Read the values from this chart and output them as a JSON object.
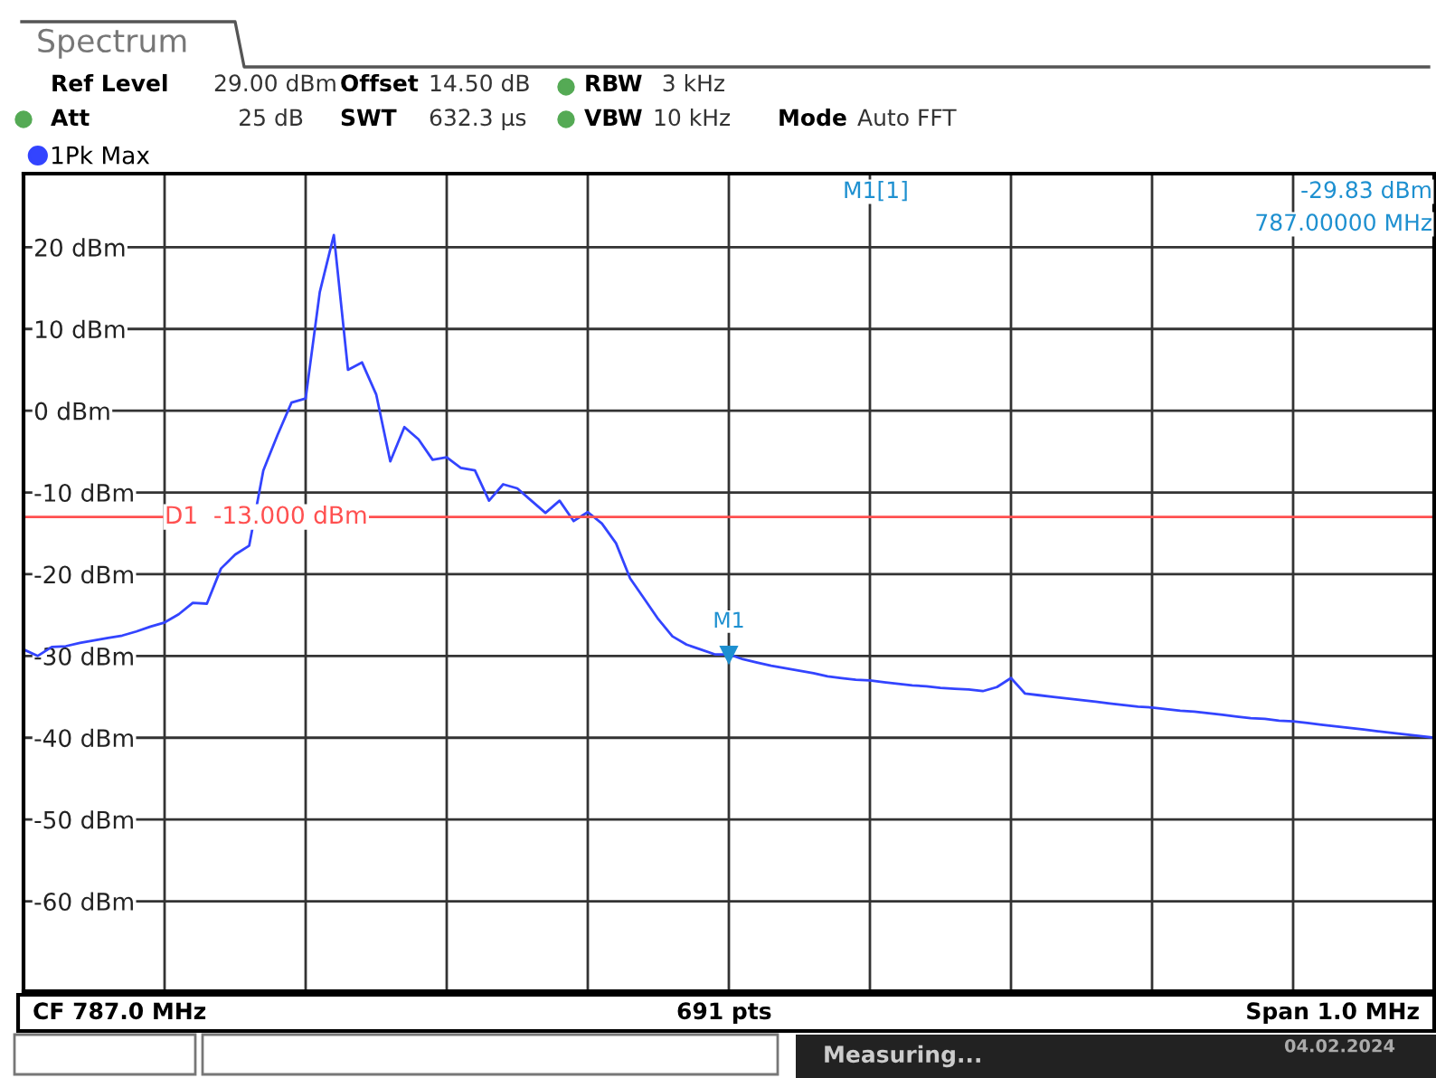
{
  "chart_data": {
    "type": "line",
    "title": "Spectrum",
    "categories": [
      null,
      null,
      null,
      null,
      null,
      null,
      null,
      null,
      null,
      null,
      null,
      null,
      null,
      null,
      null,
      null,
      null,
      null,
      null,
      null,
      null,
      null,
      null,
      null,
      null,
      null,
      null,
      null,
      null,
      null,
      null,
      null,
      null,
      null,
      null,
      null,
      null,
      null,
      null,
      null,
      null,
      null,
      null,
      null,
      null,
      null,
      null,
      null,
      null,
      null,
      null,
      null,
      null,
      null,
      null,
      null,
      null,
      null,
      null,
      null,
      null,
      null,
      null,
      null,
      null,
      null,
      null,
      null,
      null,
      null,
      null,
      null,
      null,
      null,
      null,
      null,
      null,
      null,
      null,
      null,
      null,
      null,
      null,
      null,
      null,
      null,
      null,
      null,
      null,
      null,
      null,
      null,
      null,
      null,
      null,
      null,
      null,
      null,
      null,
      null,
      null
    ],
    "ylim": [
      -71,
      29
    ],
    "yticks": [
      {
        "value": 20,
        "label": "20 dBm"
      },
      {
        "value": 10,
        "label": "10 dBm"
      },
      {
        "value": 0,
        "label": "0 dBm"
      },
      {
        "value": -10,
        "label": "-10 dBm"
      },
      {
        "value": -20,
        "label": "-20 dBm"
      },
      {
        "value": -30,
        "label": "-30 dBm"
      },
      {
        "value": -40,
        "label": "-40 dBm"
      },
      {
        "value": -50,
        "label": "-50 dBm"
      },
      {
        "value": -60,
        "label": "-60 dBm"
      }
    ],
    "tick_labels": "y",
    "grid": true,
    "legend": "top left",
    "marker": "none",
    "line_style": "solid",
    "series": [
      {
        "name": "1Pk Max",
        "color": "#3344ff",
        "values": [
          -29.2,
          -30.0,
          -28.9,
          -28.8,
          -28.4,
          -28.1,
          -27.8,
          -27.5,
          -27.0,
          -26.4,
          -25.9,
          -24.9,
          -23.5,
          -23.6,
          -19.3,
          -17.6,
          -16.5,
          -7.3,
          -3.0,
          1.0,
          1.5,
          14.5,
          21.5,
          5.0,
          5.9,
          2.0,
          -6.2,
          -2.0,
          -3.5,
          -6.0,
          -5.7,
          -7.0,
          -7.3,
          -11.0,
          -9.0,
          -9.5,
          -11.0,
          -12.5,
          -11.0,
          -13.5,
          -12.4,
          -13.8,
          -16.2,
          -20.5,
          -23.0,
          -25.5,
          -27.6,
          -28.6,
          -29.2,
          -29.8,
          -29.8,
          -30.4,
          -30.8,
          -31.2,
          -31.5,
          -31.8,
          -32.1,
          -32.5,
          -32.7,
          -32.9,
          -33.0,
          -33.2,
          -33.4,
          -33.6,
          -33.7,
          -33.9,
          -34.0,
          -34.1,
          -34.3,
          -33.8,
          -32.7,
          -34.6,
          -34.8,
          -35.0,
          -35.2,
          -35.4,
          -35.6,
          -35.8,
          -36.0,
          -36.2,
          -36.3,
          -36.5,
          -36.7,
          -36.8,
          -37.0,
          -37.2,
          -37.4,
          -37.6,
          -37.7,
          -37.9,
          -38.0,
          -38.2,
          -38.4,
          -38.6,
          -38.8,
          -39.0,
          -39.2,
          -39.4,
          -39.6,
          -39.8,
          -40.0
        ]
      }
    ],
    "ref_lines": [
      {
        "axis": "y",
        "value": -13,
        "label": "D1  -13.000 dBm",
        "color": "#ff5050",
        "line_style": "solid"
      }
    ],
    "annotations": [
      "Ref Level",
      "29.00 dBm",
      "Offset",
      "14.50 dB",
      "RBW",
      "3 kHz",
      "Att",
      "25 dB",
      "SWT",
      "632.3 µs",
      "VBW",
      "10 kHz",
      "Mode",
      "Auto FFT",
      "M1[1]",
      "-29.83 dBm",
      "787.00000 MHz",
      {
        "text": "M1",
        "y": -29.83
      },
      "CF 787.0 MHz",
      "691 pts",
      "Span 1.0 MHz",
      "Measuring...",
      "04.02.2024"
    ]
  }
}
